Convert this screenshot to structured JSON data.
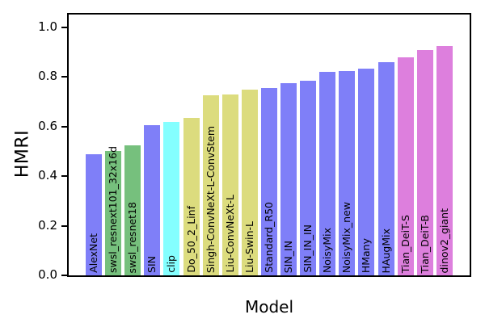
{
  "chart_data": {
    "type": "bar",
    "title": "",
    "xlabel": "Model",
    "ylabel": "HMRI",
    "categories": [
      "AlexNet",
      "swsl_resnext101_32x16d",
      "swsl_resnet18",
      "SIN",
      "clip",
      "Do_50_2_Linf",
      "Singh-ConvNeXt-L-ConvStem",
      "Liu-ConvNeXt-L",
      "Liu-Swin-L",
      "Standard_R50",
      "SIN_IN",
      "SIN_IN_IN",
      "NoisyMix",
      "NoisyMix_new",
      "HMany",
      "HAugMix",
      "Tian_DeiT-S",
      "Tian_DeiT-B",
      "dinov2_giant"
    ],
    "values": [
      0.49,
      0.5,
      0.525,
      0.605,
      0.62,
      0.635,
      0.725,
      0.73,
      0.75,
      0.755,
      0.775,
      0.785,
      0.82,
      0.825,
      0.835,
      0.86,
      0.88,
      0.91,
      0.925
    ],
    "bar_colors": [
      "#7f7ff8",
      "#76c07d",
      "#76c07d",
      "#7f7ff8",
      "#84ffff",
      "#dcdc7e",
      "#dcdc7e",
      "#dcdc7e",
      "#dcdc7e",
      "#7f7ff8",
      "#7f7ff8",
      "#7f7ff8",
      "#7f7ff8",
      "#7f7ff8",
      "#7f7ff8",
      "#7f7ff8",
      "#dd7fdd",
      "#dd7fdd",
      "#dd7fdd"
    ],
    "yticks": [
      "0.0",
      "0.2",
      "0.4",
      "0.6",
      "0.8",
      "1.0"
    ],
    "ylim": [
      0,
      1.06
    ],
    "grid": false,
    "legend": null,
    "label_rotation": 90,
    "label_position": "inside-bottom",
    "axis_color": "#000000",
    "background_color": "#ffffff"
  }
}
